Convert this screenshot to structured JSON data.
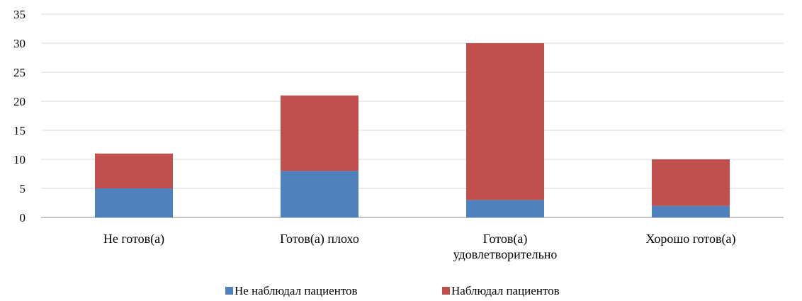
{
  "chart_data": {
    "type": "bar",
    "stacked": true,
    "categories": [
      [
        "Не готов(а)"
      ],
      [
        "Готов(а) плохо"
      ],
      [
        "Готов(а)",
        "удовлетворительно"
      ],
      [
        "Хорошо готов(а)"
      ]
    ],
    "series": [
      {
        "name": "Не наблюдал пациентов",
        "color": "#4F81BD",
        "values": [
          5,
          8,
          3,
          2
        ]
      },
      {
        "name": "Наблюдал пациентов",
        "color": "#C0504D",
        "values": [
          6,
          13,
          27,
          8
        ]
      }
    ],
    "yticks": [
      "0",
      "5",
      "10",
      "15",
      "20",
      "25",
      "30",
      "35"
    ],
    "ylim": [
      0,
      35
    ],
    "grid": true,
    "legend_position": "bottom"
  }
}
